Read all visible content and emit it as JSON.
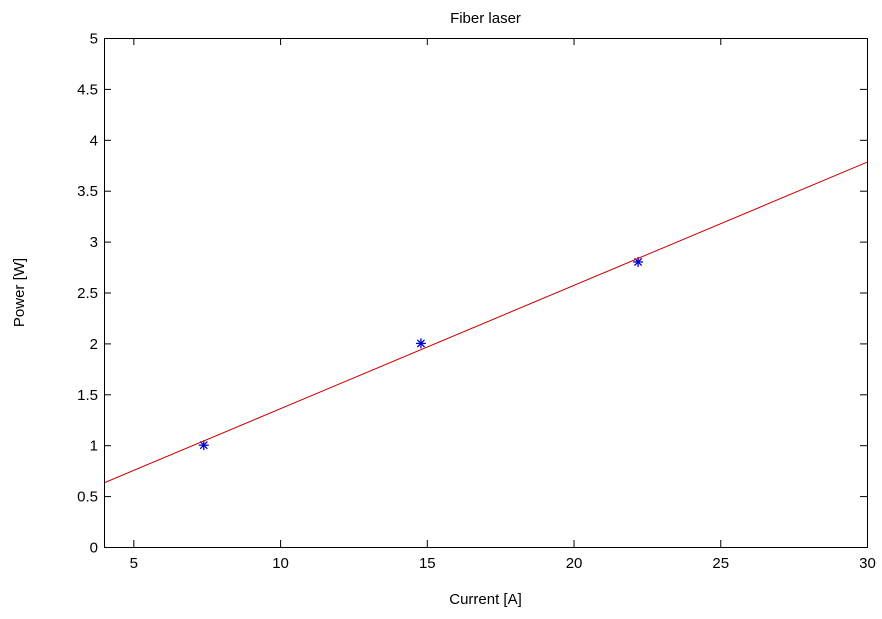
{
  "chart_data": {
    "type": "scatter",
    "title": "Fiber laser",
    "xlabel": "Current [A]",
    "ylabel": "Power [W]",
    "xlim": [
      4,
      30
    ],
    "ylim": [
      0,
      5
    ],
    "xticks": [
      5,
      10,
      15,
      20,
      25,
      30
    ],
    "yticks": [
      0,
      0.5,
      1,
      1.5,
      2,
      2.5,
      3,
      3.5,
      4,
      4.5,
      5
    ],
    "grid": false,
    "series": [
      {
        "type": "scatter",
        "marker": "asterisk",
        "color": "#0000cc",
        "x": [
          7.4,
          14.8,
          22.2
        ],
        "y": [
          1.0,
          2.0,
          2.8
        ]
      },
      {
        "type": "line",
        "color": "#cc0000",
        "x": [
          4,
          30
        ],
        "y": [
          0.63,
          3.78
        ]
      }
    ]
  }
}
